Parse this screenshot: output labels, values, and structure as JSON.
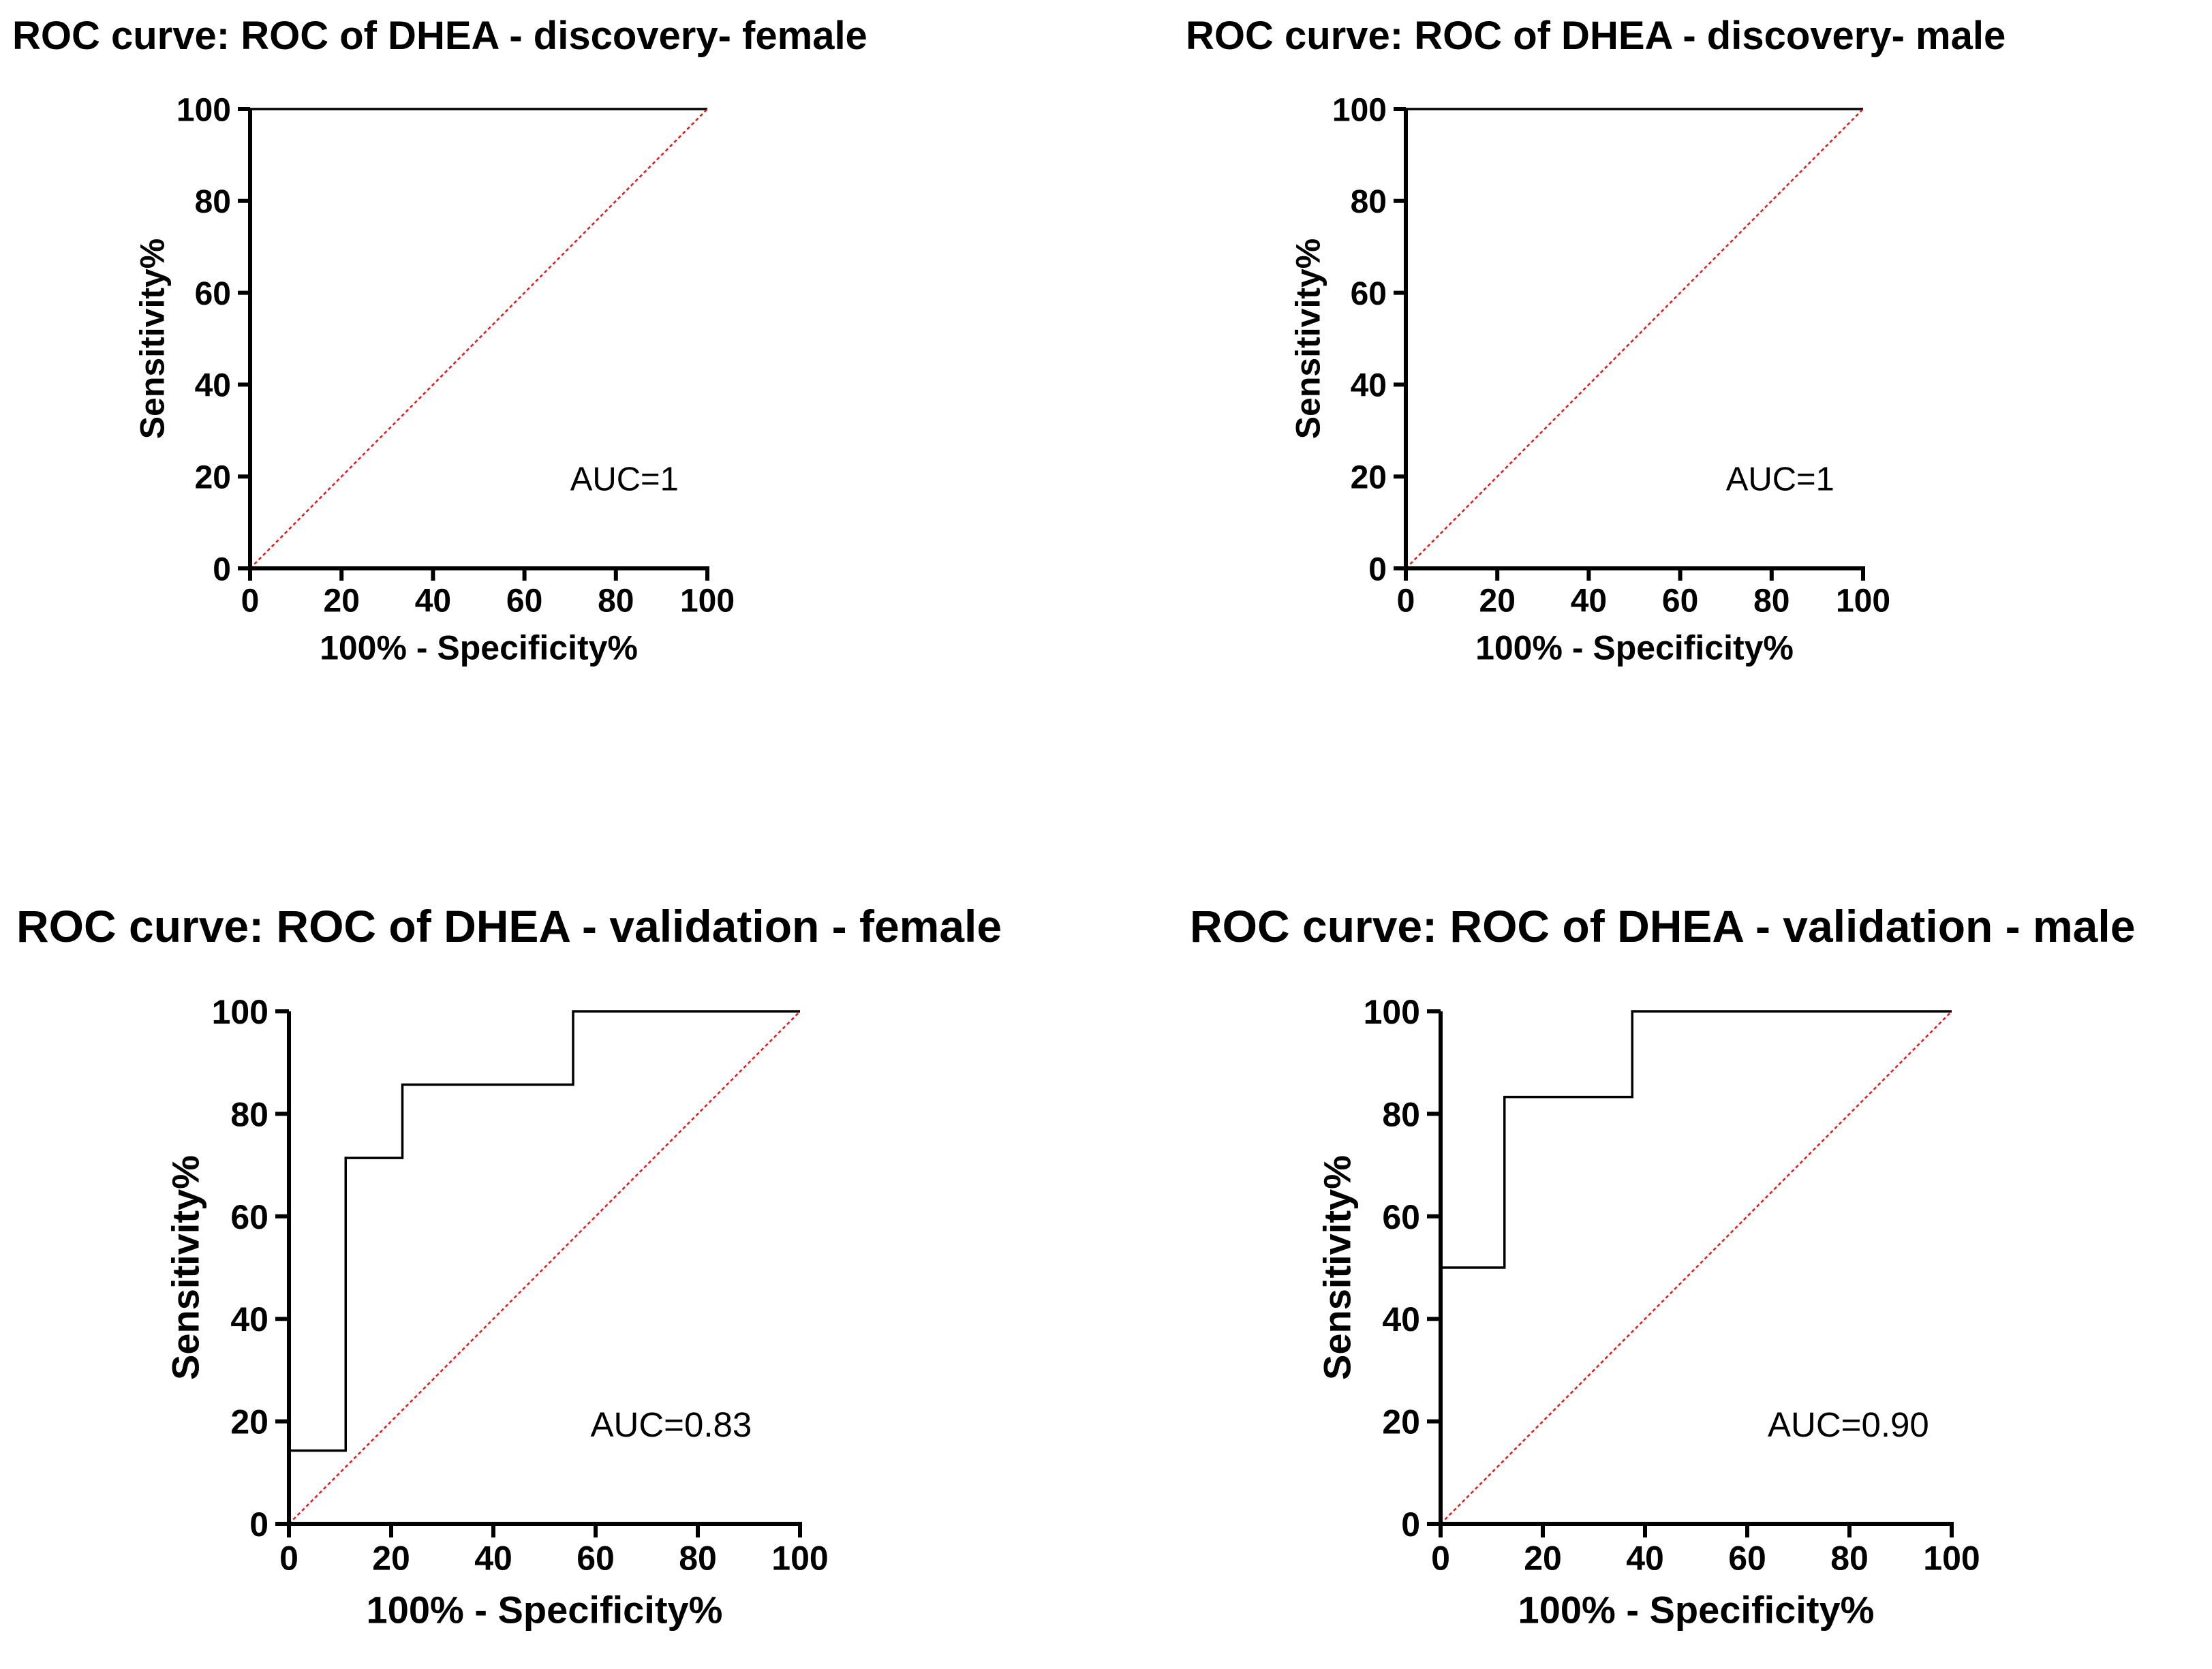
{
  "chart_data": [
    {
      "type": "line",
      "title": "ROC curve: ROC of DHEA - discovery- female",
      "xlabel": "100% - Specificity%",
      "ylabel": "Sensitivity%",
      "xlim": [
        0,
        100
      ],
      "ylim": [
        0,
        100
      ],
      "xticks": [
        "0",
        "20",
        "40",
        "60",
        "80",
        "100"
      ],
      "yticks": [
        "0",
        "20",
        "40",
        "60",
        "80",
        "100"
      ],
      "annotation": "AUC=1",
      "grid": false,
      "legend": "none",
      "series": [
        {
          "x": [
            0,
            0,
            100
          ],
          "y": [
            0,
            100,
            100
          ],
          "color": "#000000",
          "style": "step"
        },
        {
          "x": [
            0,
            100
          ],
          "y": [
            0,
            100
          ],
          "color": "#e31a1c",
          "style": "dotted"
        }
      ]
    },
    {
      "type": "line",
      "title": "ROC curve: ROC of DHEA - discovery- male",
      "xlabel": "100% - Specificity%",
      "ylabel": "Sensitivity%",
      "xlim": [
        0,
        100
      ],
      "ylim": [
        0,
        100
      ],
      "xticks": [
        "0",
        "20",
        "40",
        "60",
        "80",
        "100"
      ],
      "yticks": [
        "0",
        "20",
        "40",
        "60",
        "80",
        "100"
      ],
      "annotation": "AUC=1",
      "grid": false,
      "legend": "none",
      "series": [
        {
          "x": [
            0,
            0,
            100
          ],
          "y": [
            0,
            100,
            100
          ],
          "color": "#000000",
          "style": "step"
        },
        {
          "x": [
            0,
            100
          ],
          "y": [
            0,
            100
          ],
          "color": "#e31a1c",
          "style": "dotted"
        }
      ]
    },
    {
      "type": "line",
      "title": "ROC curve: ROC of DHEA - validation - female",
      "xlabel": "100% - Specificity%",
      "ylabel": "Sensitivity%",
      "xlim": [
        0,
        100
      ],
      "ylim": [
        0,
        100
      ],
      "xticks": [
        "0",
        "20",
        "40",
        "60",
        "80",
        "100"
      ],
      "yticks": [
        "0",
        "20",
        "40",
        "60",
        "80",
        "100"
      ],
      "annotation": "AUC=0.83",
      "grid": false,
      "legend": "none",
      "series": [
        {
          "x": [
            0,
            0,
            11.1,
            11.1,
            22.2,
            22.2,
            55.6,
            55.6,
            100
          ],
          "y": [
            0,
            14.3,
            14.3,
            71.4,
            71.4,
            85.7,
            85.7,
            100,
            100
          ],
          "color": "#000000",
          "style": "step"
        },
        {
          "x": [
            0,
            100
          ],
          "y": [
            0,
            100
          ],
          "color": "#e31a1c",
          "style": "dotted"
        }
      ]
    },
    {
      "type": "line",
      "title": "ROC curve: ROC of DHEA - validation - male",
      "xlabel": "100% - Specificity%",
      "ylabel": "Sensitivity%",
      "xlim": [
        0,
        100
      ],
      "ylim": [
        0,
        100
      ],
      "xticks": [
        "0",
        "20",
        "40",
        "60",
        "80",
        "100"
      ],
      "yticks": [
        "0",
        "20",
        "40",
        "60",
        "80",
        "100"
      ],
      "annotation": "AUC=0.90",
      "grid": false,
      "legend": "none",
      "series": [
        {
          "x": [
            0,
            0,
            12.5,
            12.5,
            37.5,
            37.5,
            100
          ],
          "y": [
            0,
            50,
            50,
            83.3,
            83.3,
            100,
            100
          ],
          "color": "#000000",
          "style": "step"
        },
        {
          "x": [
            0,
            100
          ],
          "y": [
            0,
            100
          ],
          "color": "#e31a1c",
          "style": "dotted"
        }
      ]
    }
  ]
}
